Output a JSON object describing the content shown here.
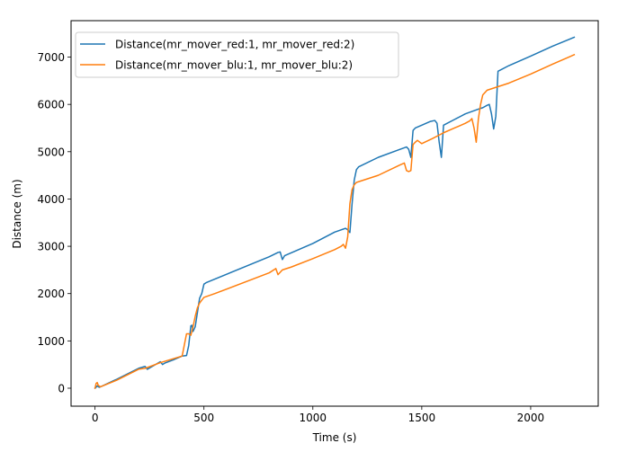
{
  "chart_data": {
    "type": "line",
    "title": "",
    "xlabel": "Time (s)",
    "ylabel": "Distance (m)",
    "xlim": [
      -110,
      2310
    ],
    "ylim": [
      -380,
      7770
    ],
    "x_ticks": [
      0,
      500,
      1000,
      1500,
      2000
    ],
    "y_ticks": [
      0,
      1000,
      2000,
      3000,
      4000,
      5000,
      6000,
      7000
    ],
    "grid": false,
    "legend_position": "top-left",
    "series": [
      {
        "name": "Distance(mr_mover_red:1, mr_mover_red:2)",
        "color": "#1f77b4",
        "x": [
          0,
          5,
          10,
          15,
          20,
          30,
          100,
          200,
          230,
          240,
          300,
          310,
          320,
          360,
          400,
          420,
          430,
          440,
          445,
          450,
          460,
          470,
          480,
          490,
          500,
          510,
          800,
          840,
          850,
          860,
          870,
          1000,
          1100,
          1150,
          1160,
          1170,
          1180,
          1190,
          1200,
          1210,
          1300,
          1400,
          1430,
          1440,
          1450,
          1460,
          1470,
          1500,
          1540,
          1560,
          1570,
          1580,
          1590,
          1600,
          1650,
          1700,
          1760,
          1780,
          1800,
          1810,
          1820,
          1830,
          1840,
          1850,
          1900,
          2000,
          2100,
          2200
        ],
        "y": [
          0,
          20,
          50,
          30,
          20,
          40,
          190,
          420,
          460,
          400,
          560,
          500,
          530,
          600,
          680,
          690,
          900,
          1320,
          1330,
          1200,
          1300,
          1600,
          1900,
          2000,
          2200,
          2230,
          2780,
          2870,
          2880,
          2720,
          2800,
          3060,
          3300,
          3380,
          3350,
          3290,
          3900,
          4400,
          4620,
          4680,
          4880,
          5050,
          5100,
          5050,
          4880,
          5450,
          5500,
          5560,
          5640,
          5660,
          5600,
          5200,
          4880,
          5560,
          5680,
          5800,
          5900,
          5930,
          5980,
          6000,
          5800,
          5480,
          5750,
          6700,
          6820,
          7020,
          7230,
          7420
        ]
      },
      {
        "name": "Distance(mr_mover_blu:1, mr_mover_blu:2)",
        "color": "#ff7f0e",
        "x": [
          0,
          5,
          10,
          15,
          25,
          100,
          200,
          230,
          300,
          400,
          420,
          430,
          440,
          450,
          460,
          470,
          480,
          490,
          500,
          550,
          800,
          830,
          840,
          860,
          900,
          1000,
          1100,
          1130,
          1140,
          1150,
          1160,
          1170,
          1180,
          1190,
          1200,
          1300,
          1400,
          1420,
          1430,
          1440,
          1450,
          1460,
          1470,
          1480,
          1500,
          1550,
          1600,
          1650,
          1700,
          1720,
          1730,
          1740,
          1750,
          1760,
          1770,
          1780,
          1800,
          1900,
          2000,
          2100,
          2200
        ],
        "y": [
          0,
          100,
          120,
          60,
          30,
          170,
          400,
          420,
          540,
          680,
          1150,
          1150,
          1120,
          1300,
          1520,
          1700,
          1800,
          1860,
          1920,
          2000,
          2440,
          2530,
          2400,
          2500,
          2560,
          2740,
          2930,
          3000,
          3040,
          2960,
          3200,
          3900,
          4200,
          4300,
          4350,
          4500,
          4720,
          4760,
          4600,
          4580,
          4600,
          5150,
          5200,
          5240,
          5170,
          5280,
          5400,
          5500,
          5600,
          5650,
          5700,
          5500,
          5200,
          5700,
          6000,
          6200,
          6300,
          6450,
          6640,
          6850,
          7050
        ]
      }
    ]
  }
}
